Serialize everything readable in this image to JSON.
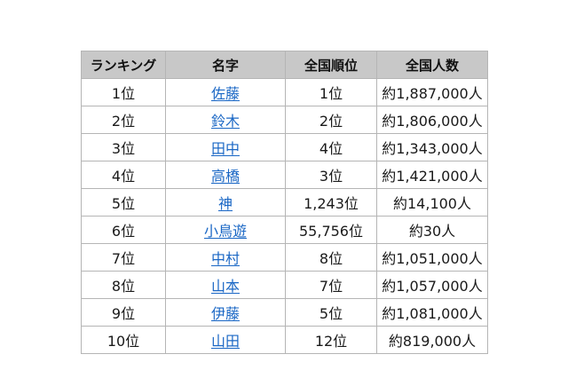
{
  "table": {
    "headers": [
      "ランキング",
      "名字",
      "全国順位",
      "全国人数"
    ],
    "link_color": "#1a67c5",
    "header_bg": "#c8c8c8",
    "rows": [
      {
        "rank": "1位",
        "name": "佐藤",
        "national_rank": "1位",
        "population": "約1,887,000人"
      },
      {
        "rank": "2位",
        "name": "鈴木",
        "national_rank": "2位",
        "population": "約1,806,000人"
      },
      {
        "rank": "3位",
        "name": "田中",
        "national_rank": "4位",
        "population": "約1,343,000人"
      },
      {
        "rank": "4位",
        "name": "高橋",
        "national_rank": "3位",
        "population": "約1,421,000人"
      },
      {
        "rank": "5位",
        "name": "神",
        "national_rank": "1,243位",
        "population": "約14,100人"
      },
      {
        "rank": "6位",
        "name": "小鳥遊",
        "national_rank": "55,756位",
        "population": "約30人"
      },
      {
        "rank": "7位",
        "name": "中村",
        "national_rank": "8位",
        "population": "約1,051,000人"
      },
      {
        "rank": "8位",
        "name": "山本",
        "national_rank": "7位",
        "population": "約1,057,000人"
      },
      {
        "rank": "9位",
        "name": "伊藤",
        "national_rank": "5位",
        "population": "約1,081,000人"
      },
      {
        "rank": "10位",
        "name": "山田",
        "national_rank": "12位",
        "population": "約819,000人"
      }
    ]
  }
}
